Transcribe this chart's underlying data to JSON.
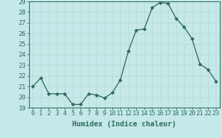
{
  "x": [
    0,
    1,
    2,
    3,
    4,
    5,
    6,
    7,
    8,
    9,
    10,
    11,
    12,
    13,
    14,
    15,
    16,
    17,
    18,
    19,
    20,
    21,
    22,
    23
  ],
  "y": [
    21.0,
    21.8,
    20.3,
    20.3,
    20.3,
    19.3,
    19.3,
    20.3,
    20.2,
    19.9,
    20.4,
    21.6,
    24.3,
    26.3,
    26.4,
    28.4,
    28.9,
    28.8,
    27.4,
    26.6,
    25.5,
    23.1,
    22.6,
    21.5
  ],
  "line_color": "#2d6b5e",
  "marker": "D",
  "marker_size": 2.5,
  "bg_color": "#c5e8e8",
  "grid_color": "#b8d8d0",
  "xlabel": "Humidex (Indice chaleur)",
  "ylim": [
    19,
    29
  ],
  "xlim": [
    -0.5,
    23.5
  ],
  "yticks": [
    19,
    20,
    21,
    22,
    23,
    24,
    25,
    26,
    27,
    28,
    29
  ],
  "xticks": [
    0,
    1,
    2,
    3,
    4,
    5,
    6,
    7,
    8,
    9,
    10,
    11,
    12,
    13,
    14,
    15,
    16,
    17,
    18,
    19,
    20,
    21,
    22,
    23
  ],
  "xlabel_fontsize": 7.5,
  "tick_fontsize": 6.5,
  "axis_color": "#2d6b5e",
  "linewidth": 1.0
}
